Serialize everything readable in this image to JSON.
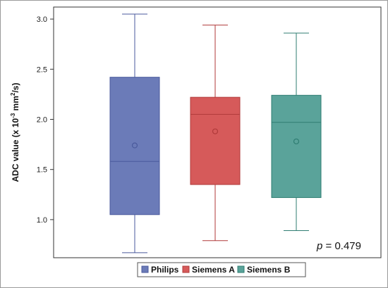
{
  "chart_data": {
    "type": "box",
    "ylabel_main": "ADC value (x 10",
    "ylabel_exp1": "-3",
    "ylabel_mid": " mm",
    "ylabel_exp2": "2",
    "ylabel_end": "/s)",
    "ylim": [
      0.62,
      3.12
    ],
    "yticks": [
      1.0,
      1.5,
      2.0,
      2.5,
      3.0
    ],
    "ytick_labels": [
      "1.0",
      "1.5",
      "2.0",
      "2.5",
      "3.0"
    ],
    "grid": false,
    "legend_position": "bottom",
    "p_label": "p",
    "p_value_text": " = 0.479",
    "series": [
      {
        "name": "Philips",
        "min": 0.67,
        "q1": 1.05,
        "median": 1.58,
        "q3": 2.42,
        "max": 3.05,
        "mean": 1.74,
        "fill": "#6b7bb8",
        "stroke": "#4a5a9c"
      },
      {
        "name": "Siemens A",
        "min": 0.79,
        "q1": 1.35,
        "median": 2.05,
        "q3": 2.22,
        "max": 2.94,
        "mean": 1.88,
        "fill": "#d65a5a",
        "stroke": "#b03a3a"
      },
      {
        "name": "Siemens B",
        "min": 0.89,
        "q1": 1.22,
        "median": 1.97,
        "q3": 2.24,
        "max": 2.86,
        "mean": 1.78,
        "fill": "#5aa39a",
        "stroke": "#2f7d72"
      }
    ]
  }
}
